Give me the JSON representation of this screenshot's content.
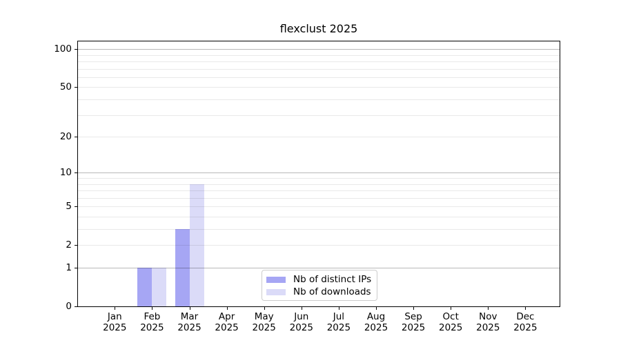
{
  "figure": {
    "background": "#ffffff"
  },
  "chart_data": {
    "type": "bar",
    "title": "flexclust 2025",
    "xlabel": "",
    "ylabel": "",
    "categories": [
      "Jan 2025",
      "Feb 2025",
      "Mar 2025",
      "Apr 2025",
      "May 2025",
      "Jun 2025",
      "Jul 2025",
      "Aug 2025",
      "Sep 2025",
      "Oct 2025",
      "Nov 2025",
      "Dec 2025"
    ],
    "series": [
      {
        "name": "Nb of distinct IPs",
        "color": "#a6a6f4",
        "values": [
          0,
          1,
          3,
          0,
          0,
          0,
          0,
          0,
          0,
          0,
          0,
          0
        ]
      },
      {
        "name": "Nb of downloads",
        "color": "#dbdbf8",
        "values": [
          0,
          1,
          8,
          0,
          0,
          0,
          0,
          0,
          0,
          0,
          0,
          0
        ]
      }
    ],
    "y_axis": {
      "scale": "log10(1+x)",
      "tick_values": [
        0,
        1,
        2,
        5,
        10,
        20,
        50,
        100
      ],
      "major_grid_values": [
        1,
        10,
        100
      ],
      "minor_grid_values": [
        2,
        3,
        4,
        5,
        6,
        7,
        8,
        9,
        20,
        30,
        40,
        50,
        60,
        70,
        80,
        90
      ],
      "top_value": 113
    },
    "grid": "horizontal major+minor, drawn over bars",
    "legend": {
      "position": "lower center inside plot",
      "entries": [
        "Nb of distinct IPs",
        "Nb of downloads"
      ]
    }
  }
}
